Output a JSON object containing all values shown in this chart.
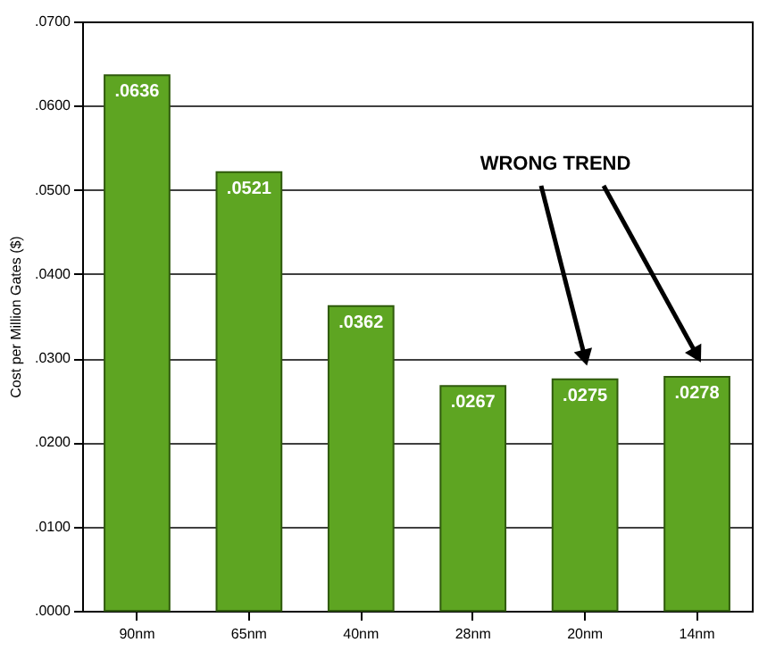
{
  "chart_data": {
    "type": "bar",
    "categories": [
      "90nm",
      "65nm",
      "40nm",
      "28nm",
      "20nm",
      "14nm"
    ],
    "values": [
      0.0636,
      0.0521,
      0.0362,
      0.0267,
      0.0275,
      0.0278
    ],
    "value_labels": [
      ".0636",
      ".0521",
      ".0362",
      ".0267",
      ".0275",
      ".0278"
    ],
    "color": "#5ea522",
    "ylabel": "Cost per Million Gates ($)",
    "ylim": [
      0,
      0.07
    ],
    "yticks": [
      {
        "value": 0,
        "label": ".0000"
      },
      {
        "value": 0.01,
        "label": ".0100"
      },
      {
        "value": 0.02,
        "label": ".0200"
      },
      {
        "value": 0.03,
        "label": ".0300"
      },
      {
        "value": 0.04,
        "label": ".0400"
      },
      {
        "value": 0.05,
        "label": ".0500"
      },
      {
        "value": 0.06,
        "label": ".0600"
      },
      {
        "value": 0.07,
        "label": ".0700"
      }
    ],
    "grid": true,
    "annotations": [
      "WRONG TREND"
    ]
  }
}
